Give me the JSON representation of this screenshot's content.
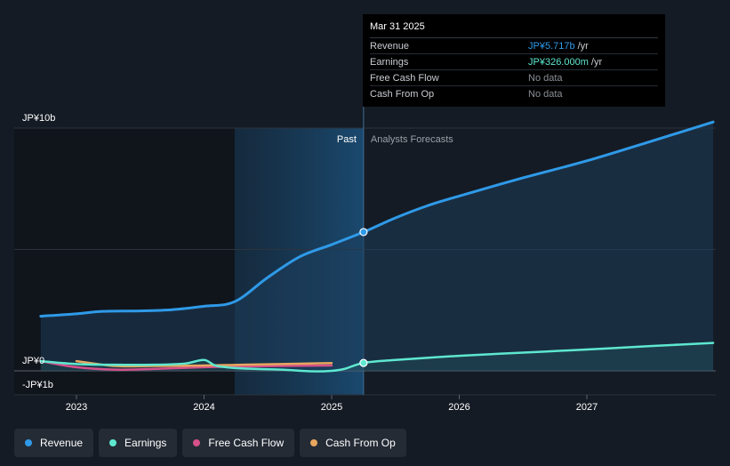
{
  "tooltip": {
    "date": "Mar 31 2025",
    "rows": [
      {
        "label": "Revenue",
        "value": "JP¥5.717b",
        "unit": "/yr",
        "color": "#2f9ae8"
      },
      {
        "label": "Earnings",
        "value": "JP¥326.000m",
        "unit": "/yr",
        "color": "#5ee8d0"
      },
      {
        "label": "Free Cash Flow",
        "value": "No data",
        "unit": "",
        "color": "#8a8f96"
      },
      {
        "label": "Cash From Op",
        "value": "No data",
        "unit": "",
        "color": "#8a8f96"
      }
    ]
  },
  "legend": [
    {
      "label": "Revenue",
      "color": "#2f9ae8"
    },
    {
      "label": "Earnings",
      "color": "#5ee8d0"
    },
    {
      "label": "Free Cash Flow",
      "color": "#d6508a"
    },
    {
      "label": "Cash From Op",
      "color": "#e8a65e"
    }
  ],
  "chart_data": {
    "type": "line",
    "y_ticks": [
      {
        "label": "JP¥10b",
        "value": 10
      },
      {
        "label": "JP¥0",
        "value": 0
      },
      {
        "label": "-JP¥1b",
        "value": -1
      }
    ],
    "ylim": [
      -1,
      10
    ],
    "xlim": [
      2022.72,
      2027.99
    ],
    "x_ticks": [
      {
        "label": "2023",
        "value": 2023
      },
      {
        "label": "2024",
        "value": 2024
      },
      {
        "label": "2025",
        "value": 2025
      },
      {
        "label": "2026",
        "value": 2026
      },
      {
        "label": "2027",
        "value": 2027
      }
    ],
    "past_label": "Past",
    "forecast_label": "Analysts Forecasts",
    "divider_x": 2025.25,
    "highlight_start_x": 2024.24,
    "grid": true,
    "colors": {
      "revenue": "#2f9ae8",
      "earnings": "#5ee8d0",
      "fcf": "#d6508a",
      "cfo": "#e8a65e"
    },
    "series": [
      {
        "name": "Revenue",
        "key": "revenue",
        "x": [
          2022.72,
          2023.0,
          2023.2,
          2023.5,
          2023.75,
          2024.0,
          2024.24,
          2024.5,
          2024.75,
          2025.0,
          2025.25,
          2025.5,
          2025.75,
          2026.0,
          2026.5,
          2027.0,
          2027.5,
          2027.99
        ],
        "y": [
          2.25,
          2.35,
          2.45,
          2.47,
          2.52,
          2.66,
          2.85,
          3.85,
          4.7,
          5.2,
          5.717,
          6.3,
          6.8,
          7.2,
          7.95,
          8.65,
          9.45,
          10.25
        ]
      },
      {
        "name": "Earnings",
        "key": "earnings",
        "x": [
          2022.72,
          2023.0,
          2023.3,
          2023.6,
          2023.85,
          2024.0,
          2024.1,
          2024.3,
          2024.6,
          2024.85,
          2025.0,
          2025.1,
          2025.25,
          2025.5,
          2026.0,
          2026.5,
          2027.0,
          2027.5,
          2027.99
        ],
        "y": [
          0.4,
          0.28,
          0.25,
          0.25,
          0.3,
          0.45,
          0.2,
          0.1,
          0.05,
          -0.02,
          0.0,
          0.08,
          0.326,
          0.45,
          0.62,
          0.75,
          0.88,
          1.02,
          1.15
        ]
      },
      {
        "name": "Free Cash Flow",
        "key": "fcf",
        "x": [
          2022.72,
          2023.0,
          2023.3,
          2023.6,
          2024.0,
          2024.3,
          2024.6,
          2025.0
        ],
        "y": [
          0.4,
          0.15,
          0.05,
          0.08,
          0.15,
          0.18,
          0.2,
          0.22
        ]
      },
      {
        "name": "Cash From Op",
        "key": "cfo",
        "x": [
          2023.0,
          2023.3,
          2023.6,
          2024.0,
          2024.3,
          2024.6,
          2025.0
        ],
        "y": [
          0.4,
          0.2,
          0.2,
          0.22,
          0.25,
          0.28,
          0.32
        ]
      }
    ],
    "marker_points": [
      {
        "series": "Revenue",
        "x": 2025.25,
        "y": 5.717
      },
      {
        "series": "Earnings",
        "x": 2025.25,
        "y": 0.326
      }
    ]
  }
}
